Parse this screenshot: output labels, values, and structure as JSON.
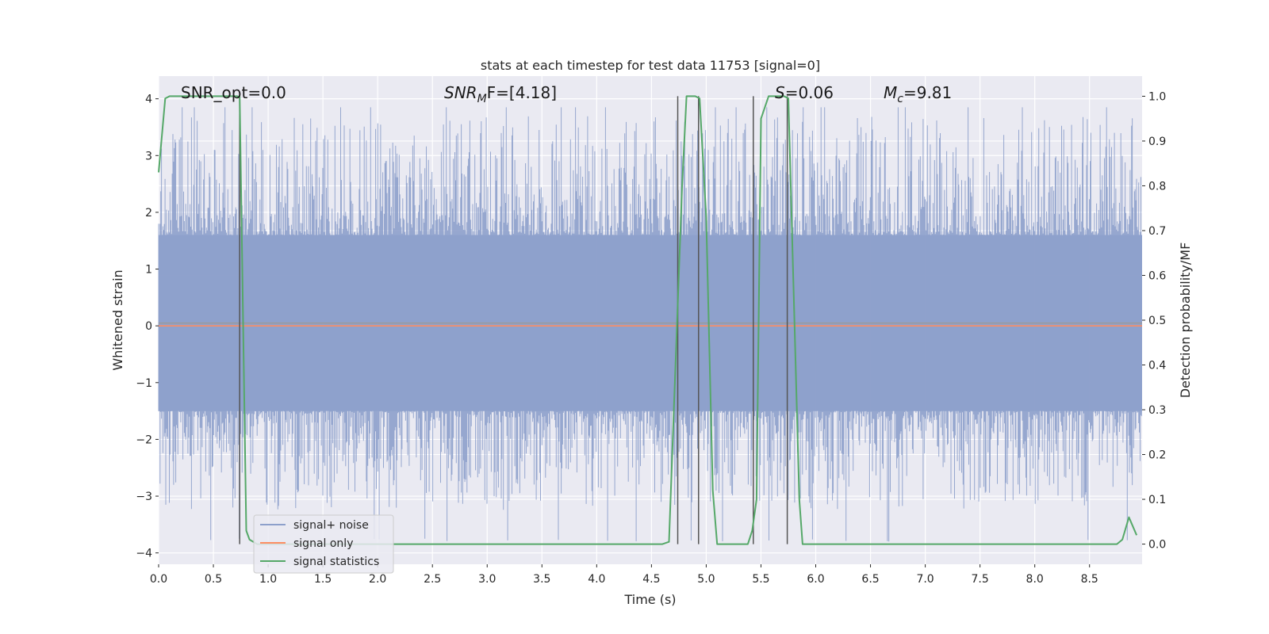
{
  "chart_data": {
    "type": "line",
    "title": "stats at each timestep for test data 11753 [signal=0]",
    "xlabel": "Time (s)",
    "ylabel_left": "Whitened strain",
    "ylabel_right": "Detection probability/MF",
    "xlim": [
      0.0,
      8.98
    ],
    "ylim_left": [
      -4.2,
      4.4
    ],
    "ylim_right": [
      -0.045,
      1.045
    ],
    "xticks": [
      "0.0",
      "0.5",
      "1.0",
      "1.5",
      "2.0",
      "2.5",
      "3.0",
      "3.5",
      "4.0",
      "4.5",
      "5.0",
      "5.5",
      "6.0",
      "6.5",
      "7.0",
      "7.5",
      "8.0",
      "8.5"
    ],
    "yticks_left": [
      "−4",
      "−3",
      "−2",
      "−1",
      "0",
      "1",
      "2",
      "3",
      "4"
    ],
    "yticks_right": [
      "0.0",
      "0.1",
      "0.2",
      "0.3",
      "0.4",
      "0.5",
      "0.6",
      "0.7",
      "0.8",
      "0.9",
      "1.0"
    ],
    "grid": true,
    "legend_position": "lower-left",
    "annotations": {
      "snr_opt": "SNR_opt=0.0",
      "snr_mf_main": "SNR",
      "snr_mf_sub": "M",
      "snr_mf_tail": "F=[4.18]",
      "s_main": "S",
      "s_tail": "=0.06",
      "mc_main": "M",
      "mc_sub": "c",
      "mc_tail": "=9.81"
    },
    "series": [
      {
        "name": "signal+ noise",
        "color": "#8da0cb",
        "axis": "left",
        "style": "noise band, approx range -3.3 to 3.8",
        "band_core": [
          -1.5,
          1.6
        ]
      },
      {
        "name": "signal only",
        "color": "#fc8d62",
        "axis": "left",
        "x": [
          0.0,
          8.98
        ],
        "y": [
          0.0,
          0.0
        ]
      },
      {
        "name": "signal statistics",
        "color": "#55a868",
        "axis": "right",
        "x": [
          0.0,
          0.06,
          0.1,
          0.72,
          0.74,
          0.8,
          0.83,
          0.9,
          4.6,
          4.66,
          4.78,
          4.82,
          4.9,
          4.94,
          5.0,
          5.06,
          5.1,
          5.38,
          5.42,
          5.46,
          5.5,
          5.57,
          5.71,
          5.75,
          5.85,
          5.88,
          8.75,
          8.8,
          8.86,
          8.93
        ],
        "y": [
          0.83,
          0.995,
          1.0,
          1.0,
          0.998,
          0.03,
          0.01,
          0.0,
          0.0,
          0.005,
          0.8,
          1.0,
          1.0,
          0.995,
          0.73,
          0.12,
          0.0,
          0.0,
          0.03,
          0.1,
          0.95,
          1.0,
          1.0,
          0.995,
          0.1,
          0.0,
          0.0,
          0.01,
          0.06,
          0.02
        ]
      }
    ],
    "vlines": {
      "color": "#555555",
      "x": [
        0.74,
        4.74,
        4.93,
        5.43,
        5.74
      ],
      "y_range_right": [
        0.0,
        1.0
      ]
    },
    "y_gridlines_right_axis": [
      0.1,
      0.2,
      0.3,
      0.4,
      0.5,
      0.6,
      0.7,
      0.8,
      0.9
    ]
  }
}
